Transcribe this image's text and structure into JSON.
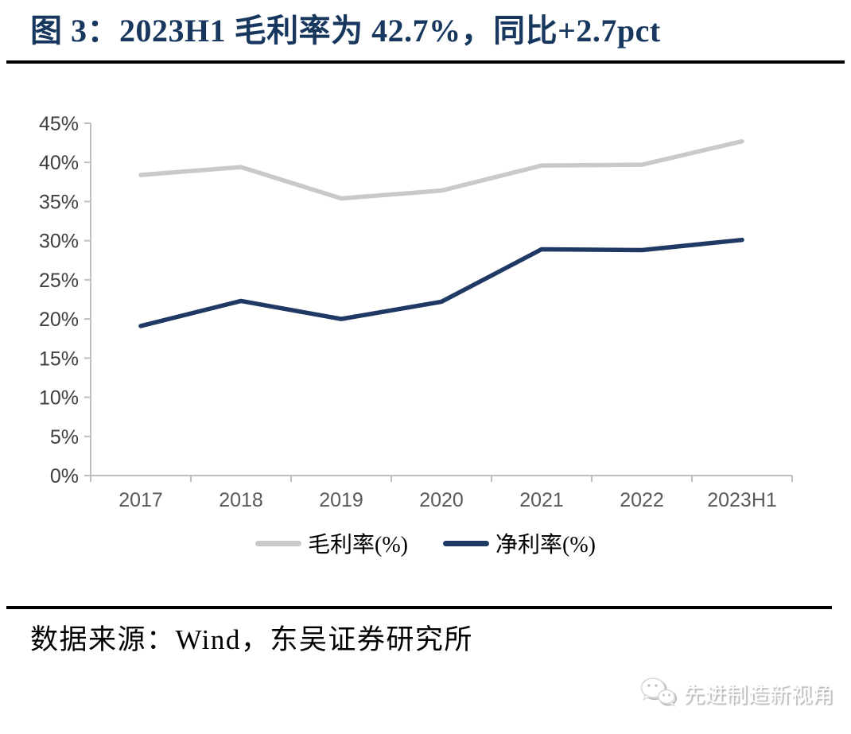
{
  "figure": {
    "title": "图 3：2023H1 毛利率为 42.7%，同比+2.7pct",
    "title_color": "#17375E"
  },
  "chart_data": {
    "type": "line",
    "title": "图 3：2023H1 毛利率为 42.7%，同比+2.7pct",
    "categories": [
      "2017",
      "2018",
      "2019",
      "2020",
      "2021",
      "2022",
      "2023H1"
    ],
    "series": [
      {
        "name": "毛利率(%)",
        "color": "#C9C9C9",
        "values": [
          38.4,
          39.4,
          35.4,
          36.4,
          39.6,
          39.7,
          42.7
        ]
      },
      {
        "name": "净利率(%)",
        "color": "#1F3864",
        "values": [
          19.1,
          22.3,
          20.0,
          22.2,
          28.9,
          28.8,
          30.1
        ]
      }
    ],
    "xlabel": "",
    "ylabel": "",
    "ylim": [
      0,
      45
    ],
    "ytick_step": 5,
    "ytick_suffix": "%",
    "grid": false,
    "legend_position": "bottom",
    "axis_color": "#BFBFBF",
    "tick_label_color_y": "#3f3f3f",
    "tick_label_color_x": "#595959"
  },
  "footer": {
    "source": "数据来源：Wind，东吴证券研究所"
  },
  "watermark": {
    "text": "先进制造新视角",
    "icon": "wechat-bubbles-icon"
  }
}
